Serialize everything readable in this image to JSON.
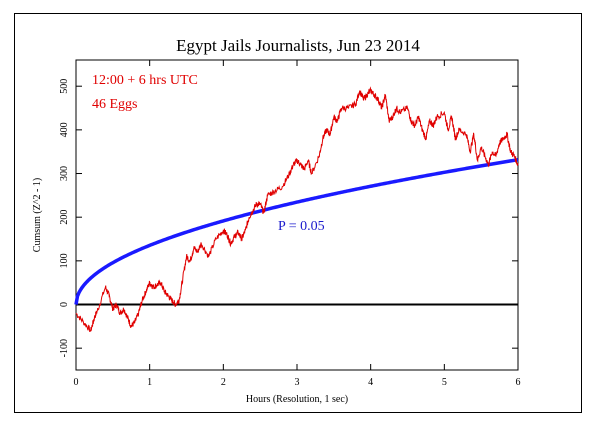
{
  "chart_data": {
    "type": "line",
    "title": "Egypt Jails Journalists, Jun 23 2014",
    "xlabel": "Hours (Resolution, 1 sec)",
    "ylabel": "Cumsum (Z^2 - 1)",
    "xlim": [
      0,
      6
    ],
    "ylim": [
      -150,
      560
    ],
    "x_ticks": [
      0,
      1,
      2,
      3,
      4,
      5,
      6
    ],
    "y_ticks": [
      -100,
      0,
      100,
      200,
      300,
      400,
      500
    ],
    "annotations": {
      "time": "12:00 + 6 hrs UTC",
      "eggs": "46 Eggs",
      "p_label": "P = 0.05"
    },
    "series": [
      {
        "role": "cumulative-deviation",
        "color": "#e00000",
        "x": [
          0,
          0.1,
          0.2,
          0.25,
          0.3,
          0.4,
          0.45,
          0.5,
          0.55,
          0.6,
          0.65,
          0.7,
          0.75,
          0.8,
          0.85,
          0.9,
          0.95,
          1.0,
          1.05,
          1.1,
          1.15,
          1.2,
          1.25,
          1.3,
          1.35,
          1.4,
          1.45,
          1.5,
          1.55,
          1.6,
          1.65,
          1.7,
          1.8,
          1.9,
          2.0,
          2.05,
          2.1,
          2.15,
          2.2,
          2.25,
          2.3,
          2.35,
          2.4,
          2.45,
          2.5,
          2.55,
          2.6,
          2.7,
          2.8,
          2.9,
          2.95,
          3.0,
          3.05,
          3.1,
          3.15,
          3.2,
          3.3,
          3.35,
          3.4,
          3.45,
          3.5,
          3.55,
          3.6,
          3.7,
          3.8,
          3.85,
          3.9,
          3.95,
          4.0,
          4.05,
          4.1,
          4.15,
          4.2,
          4.25,
          4.3,
          4.35,
          4.4,
          4.5,
          4.55,
          4.6,
          4.65,
          4.7,
          4.75,
          4.8,
          4.85,
          4.9,
          5.0,
          5.05,
          5.1,
          5.15,
          5.2,
          5.3,
          5.35,
          5.4,
          5.45,
          5.5,
          5.55,
          5.6,
          5.65,
          5.7,
          5.75,
          5.8,
          5.85,
          5.9,
          5.95,
          6.0
        ],
        "y": [
          -20,
          -40,
          -60,
          -30,
          -10,
          40,
          20,
          -10,
          0,
          -20,
          -10,
          -30,
          -50,
          -40,
          -20,
          10,
          30,
          50,
          40,
          45,
          50,
          30,
          20,
          10,
          0,
          10,
          60,
          110,
          100,
          130,
          120,
          140,
          110,
          150,
          170,
          160,
          140,
          155,
          165,
          150,
          170,
          200,
          215,
          230,
          230,
          210,
          250,
          260,
          270,
          300,
          320,
          330,
          320,
          310,
          330,
          300,
          340,
          380,
          400,
          390,
          430,
          420,
          450,
          450,
          460,
          490,
          470,
          480,
          490,
          480,
          470,
          450,
          480,
          420,
          430,
          450,
          440,
          450,
          420,
          410,
          430,
          400,
          380,
          420,
          410,
          430,
          440,
          400,
          430,
          380,
          400,
          390,
          350,
          390,
          330,
          360,
          340,
          320,
          350,
          340,
          370,
          380,
          390,
          350,
          340,
          320
        ]
      },
      {
        "role": "p-0.05-envelope",
        "color": "#0000e0",
        "formula": "1.645*sqrt(2*t)",
        "x_start": 0,
        "x_end": 6
      },
      {
        "role": "zero-line",
        "color": "#000000",
        "y": 0
      }
    ]
  }
}
